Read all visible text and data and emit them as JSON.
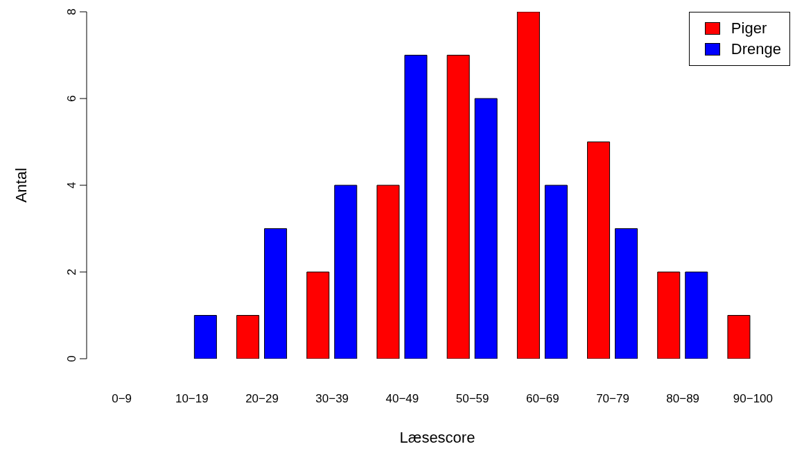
{
  "chart_data": {
    "type": "bar",
    "xlabel": "Læsescore",
    "ylabel": "Antal",
    "categories": [
      "0−9",
      "10−19",
      "20−29",
      "30−39",
      "40−49",
      "50−59",
      "60−69",
      "70−79",
      "80−89",
      "90−100"
    ],
    "series": [
      {
        "name": "Piger",
        "color": "#ff0000",
        "values": [
          0,
          0,
          1,
          2,
          4,
          7,
          8,
          5,
          2,
          1
        ]
      },
      {
        "name": "Drenge",
        "color": "#0000ff",
        "values": [
          0,
          1,
          3,
          4,
          7,
          6,
          4,
          3,
          2,
          0
        ]
      }
    ],
    "ylim": [
      0,
      8
    ],
    "yticks": [
      0,
      2,
      4,
      6,
      8
    ],
    "legend": "top right"
  }
}
